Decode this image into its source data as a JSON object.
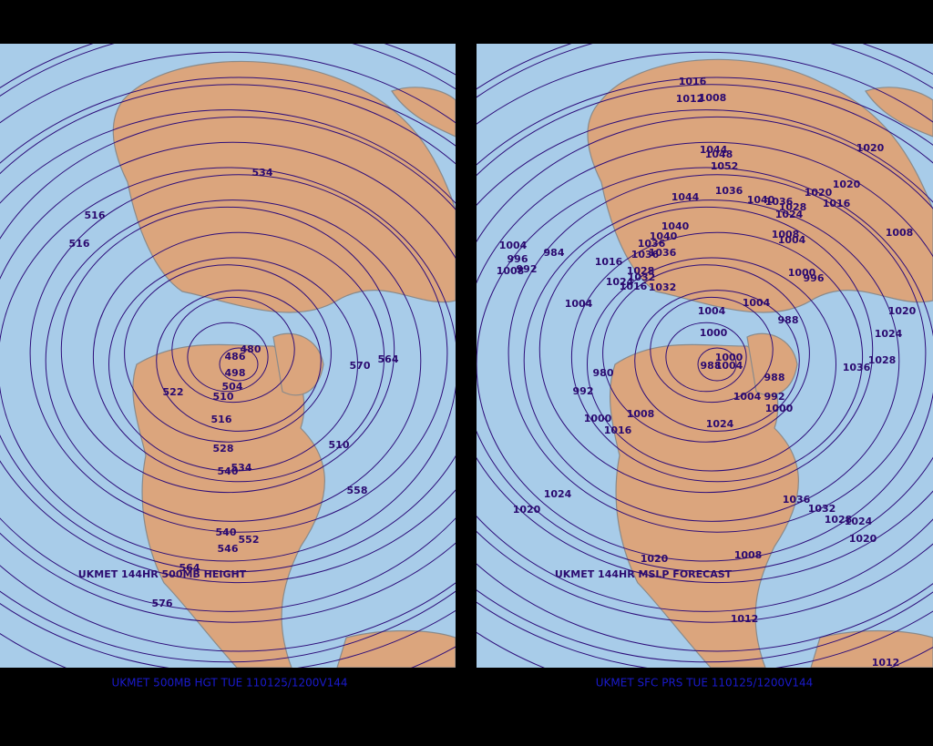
{
  "panels": [
    {
      "map_title": "UKMET 144HR 500MB HEIGHT",
      "caption": "UKMET 500MB HGT TUE 110125/1200V144",
      "contour_labels": [
        516,
        516,
        534,
        522,
        516,
        528,
        540,
        534,
        510,
        504,
        498,
        486,
        480,
        570,
        564,
        510,
        558,
        540,
        546,
        552,
        564,
        576
      ]
    },
    {
      "map_title": "UKMET 144HR MSLP FORECAST",
      "caption": "UKMET SFC PRS TUE 110125/1200V144",
      "contour_labels": [
        1016,
        1012,
        1008,
        1044,
        1048,
        1052,
        1044,
        1036,
        1040,
        1036,
        1028,
        1024,
        1020,
        1020,
        1016,
        1020,
        1008,
        1008,
        1004,
        1000,
        996,
        1040,
        1040,
        1036,
        1036,
        1036,
        1016,
        1028,
        1024,
        1032,
        1016,
        1032,
        1004,
        984,
        996,
        992,
        1008,
        1004,
        1004,
        1004,
        988,
        1000,
        1020,
        1024,
        1036,
        1028,
        980,
        1000,
        988,
        1004,
        988,
        992,
        1000,
        1004,
        1024,
        992,
        1000,
        1016,
        1008,
        1024,
        1020,
        1036,
        1032,
        1028,
        1024,
        1020,
        1020,
        1008,
        1012,
        1012
      ]
    }
  ]
}
